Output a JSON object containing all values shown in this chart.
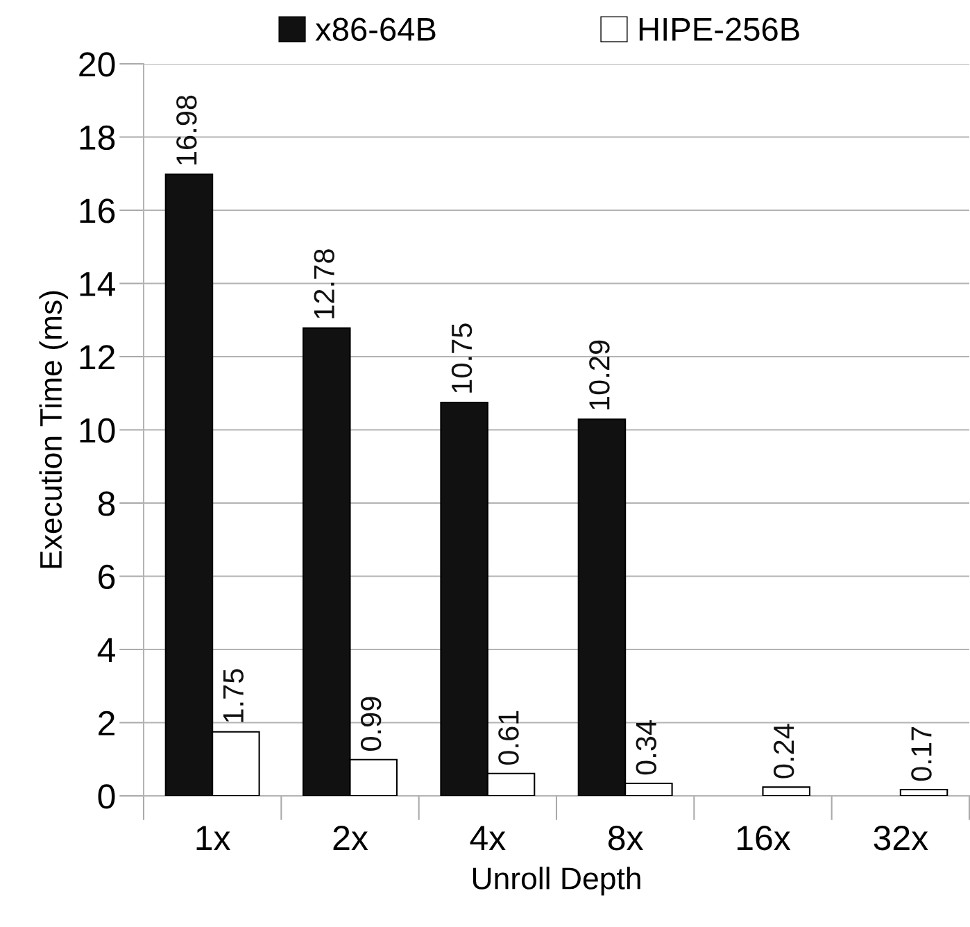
{
  "chart_data": {
    "type": "bar",
    "xlabel": "Unroll Depth",
    "ylabel": "Execution Time (ms)",
    "categories": [
      "1x",
      "2x",
      "4x",
      "8x",
      "16x",
      "32x"
    ],
    "series": [
      {
        "name": "x86-64B",
        "color": "#111111",
        "values": [
          16.98,
          12.78,
          10.75,
          10.29,
          null,
          null
        ]
      },
      {
        "name": "HIPE-256B",
        "color": "#ffffff",
        "values": [
          1.75,
          0.99,
          0.61,
          0.34,
          0.24,
          0.17
        ]
      }
    ],
    "ylim": [
      0,
      20
    ],
    "yticks": [
      0,
      2,
      4,
      6,
      8,
      10,
      12,
      14,
      16,
      18,
      20
    ],
    "grid": "y",
    "legend": "top",
    "data_labels": true
  }
}
